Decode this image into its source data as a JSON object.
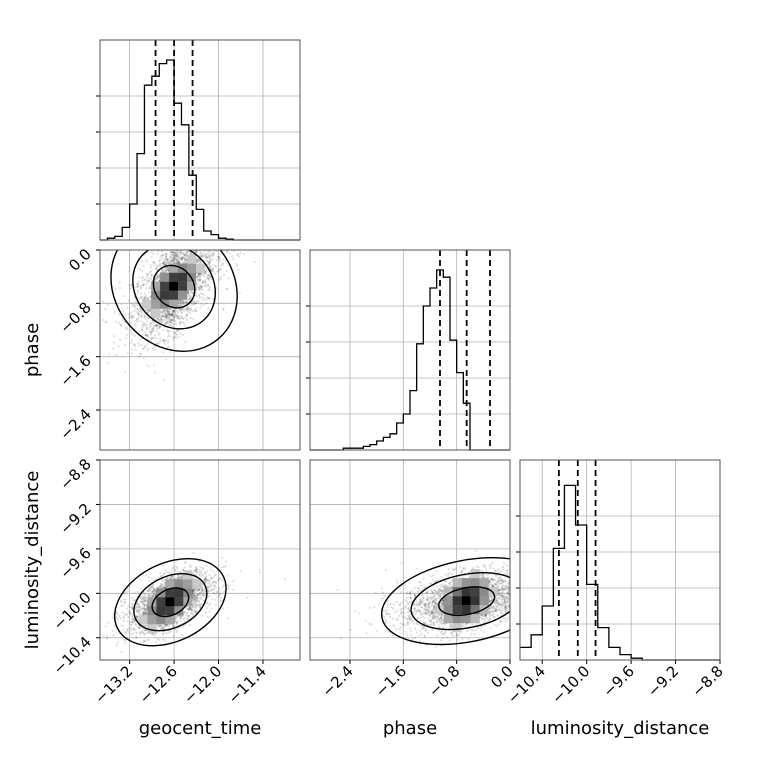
{
  "chart_data": {
    "type": "corner",
    "parameters": [
      "geocent_time",
      "phase",
      "luminosity_distance"
    ],
    "grid": true,
    "diagonal": [
      {
        "parameter": "geocent_time",
        "range": [
          -13.6,
          -10.9
        ],
        "bin_edges": [
          -13.6,
          -13.5,
          -13.4,
          -13.3,
          -13.2,
          -13.1,
          -13.0,
          -12.9,
          -12.8,
          -12.7,
          -12.6,
          -12.5,
          -12.4,
          -12.3,
          -12.2,
          -12.1,
          -12.0,
          -11.9,
          -11.8,
          -11.7,
          -11.6,
          -11.5,
          -11.4,
          -11.3,
          -11.2,
          -11.1,
          -11.0,
          -10.9
        ],
        "counts": [
          0,
          0.01,
          0.02,
          0.07,
          0.2,
          0.48,
          0.86,
          0.91,
          0.98,
          1.0,
          0.76,
          0.64,
          0.36,
          0.17,
          0.05,
          0.03,
          0.01,
          0.005,
          0,
          0,
          0,
          0,
          0,
          0,
          0,
          0,
          0
        ],
        "quantiles": [
          -12.85,
          -12.6,
          -12.35
        ],
        "xticks": [
          "-13.2",
          "-12.6",
          "-12.0",
          "-11.4"
        ],
        "xtick_values": [
          -13.2,
          -12.6,
          -12.0,
          -11.4
        ]
      },
      {
        "parameter": "phase",
        "range": [
          -3.0,
          0.0
        ],
        "bin_edges": [
          -3.0,
          -2.9,
          -2.8,
          -2.7,
          -2.6,
          -2.5,
          -2.4,
          -2.3,
          -2.2,
          -2.1,
          -2.0,
          -1.9,
          -1.8,
          -1.7,
          -1.6,
          -1.5,
          -1.4,
          -1.3,
          -1.2,
          -1.1,
          -1.0,
          -0.9,
          -0.8,
          -0.7,
          -0.6,
          -0.5,
          -0.4,
          -0.3,
          -0.2,
          -0.1,
          0.0
        ],
        "counts": [
          0,
          0,
          0,
          0,
          0,
          0.01,
          0.01,
          0.01,
          0.02,
          0.03,
          0.05,
          0.07,
          0.09,
          0.15,
          0.2,
          0.33,
          0.59,
          0.8,
          0.9,
          1.0,
          0.96,
          0.61,
          0.43,
          0.26,
          0,
          0,
          0,
          0,
          0,
          0
        ],
        "quantiles": [
          -1.05,
          -0.65,
          -0.3
        ],
        "xticks": [
          "-2.4",
          "-1.6",
          "-0.8",
          "0.0"
        ],
        "xtick_values": [
          -2.4,
          -1.6,
          -0.8,
          0.0
        ]
      },
      {
        "parameter": "luminosity_distance",
        "range": [
          -10.6,
          -8.8
        ],
        "bin_edges": [
          -10.6,
          -10.5,
          -10.4,
          -10.3,
          -10.2,
          -10.1,
          -10.0,
          -9.9,
          -9.8,
          -9.7,
          -9.6,
          -9.5,
          -9.4,
          -9.3,
          -9.2,
          -9.1,
          -9.0,
          -8.9,
          -8.8
        ],
        "counts": [
          0.07,
          0.14,
          0.3,
          0.62,
          0.97,
          0.75,
          0.42,
          0.18,
          0.07,
          0.03,
          0.01,
          0,
          0,
          0,
          0,
          0,
          0,
          0
        ],
        "quantiles": [
          -10.25,
          -10.08,
          -9.92
        ],
        "xticks": [
          "-10.4",
          "-10.0",
          "-9.6",
          "-9.2",
          "-8.8"
        ],
        "xtick_values": [
          -10.4,
          -10.0,
          -9.6,
          -9.2,
          -8.8
        ]
      }
    ],
    "off_diagonal": [
      {
        "x": "geocent_time",
        "y": "phase",
        "xrange": [
          -13.6,
          -10.9
        ],
        "yrange": [
          -3.0,
          0.0
        ],
        "center": [
          -12.6,
          -0.55
        ],
        "sigma": [
          0.22,
          0.38
        ],
        "correlation": 0.55,
        "yticks": [
          "0.0",
          "-0.8",
          "-1.6",
          "-2.4"
        ],
        "ytick_values": [
          0.0,
          -0.8,
          -1.6,
          -2.4
        ]
      },
      {
        "x": "geocent_time",
        "y": "luminosity_distance",
        "xrange": [
          -13.6,
          -10.9
        ],
        "yrange": [
          -10.6,
          -8.8
        ],
        "center": [
          -12.65,
          -10.08
        ],
        "sigma": [
          0.22,
          0.13
        ],
        "correlation": 0.55,
        "yticks": [
          "-8.8",
          "-9.2",
          "-9.6",
          "-10.0",
          "-10.4"
        ],
        "ytick_values": [
          -8.8,
          -9.2,
          -9.6,
          -10.0,
          -10.4
        ]
      },
      {
        "x": "phase",
        "y": "luminosity_distance",
        "xrange": [
          -3.0,
          0.0
        ],
        "yrange": [
          -10.6,
          -8.8
        ],
        "center": [
          -0.65,
          -10.07
        ],
        "sigma": [
          0.38,
          0.13
        ],
        "correlation": 0.35
      }
    ],
    "contour_levels": [
      0.39,
      0.86,
      0.99
    ],
    "xlabel_bottom": [
      "geocent_time",
      "phase",
      "luminosity_distance"
    ],
    "ylabel_left": [
      "phase",
      "luminosity_distance"
    ]
  }
}
